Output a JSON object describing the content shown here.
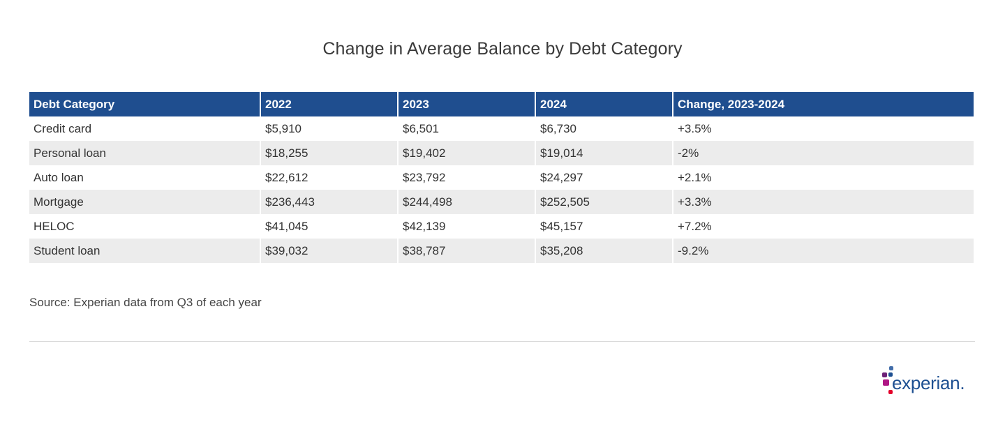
{
  "title": "Change in Average Balance by Debt Category",
  "table": {
    "headers": [
      "Debt Category",
      "2022",
      "2023",
      "2024",
      "Change, 2023-2024"
    ],
    "rows": [
      [
        "Credit card",
        "$5,910",
        "$6,501",
        "$6,730",
        "+3.5%"
      ],
      [
        "Personal loan",
        "$18,255",
        "$19,402",
        "$19,014",
        "-2%"
      ],
      [
        "Auto loan",
        "$22,612",
        "$23,792",
        "$24,297",
        "+2.1%"
      ],
      [
        "Mortgage",
        "$236,443",
        "$244,498",
        "$252,505",
        "+3.3%"
      ],
      [
        "HELOC",
        "$41,045",
        "$42,139",
        "$45,157",
        "+7.2%"
      ],
      [
        "Student loan",
        "$39,032",
        "$38,787",
        "$35,208",
        "-9.2%"
      ]
    ]
  },
  "source": "Source: Experian data from Q3 of each year",
  "logo": {
    "wordmark": "experian.",
    "colors": {
      "blue": "#1d4f91",
      "purple": "#6d2077",
      "magenta": "#af1685",
      "red": "#e4002b",
      "violet": "#426da9"
    }
  },
  "colors": {
    "header_bg": "#1f4e8f",
    "stripe_bg": "#ececec"
  }
}
